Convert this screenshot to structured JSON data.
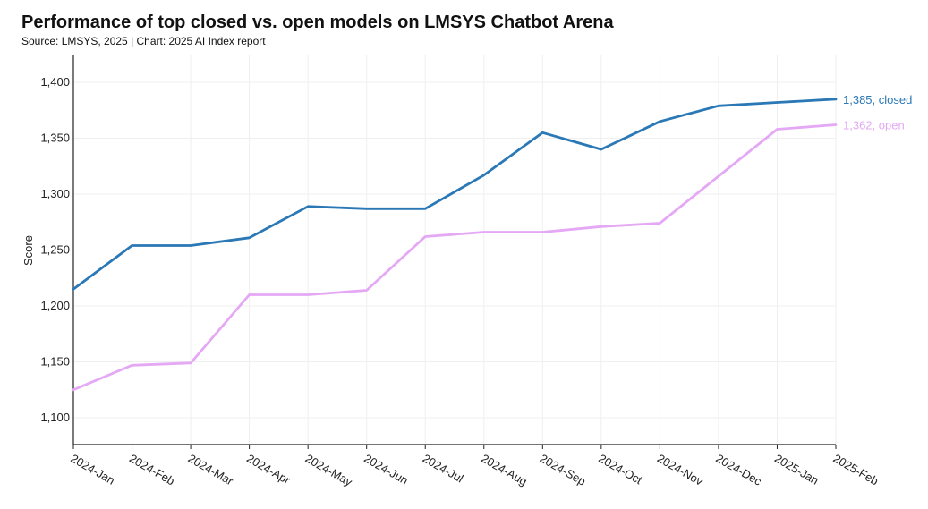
{
  "header": {
    "title": "Performance of top closed vs. open models on LMSYS Chatbot Arena",
    "source": "Source: LMSYS, 2025 | Chart: 2025 AI Index report"
  },
  "chart_data": {
    "type": "line",
    "title": "Performance of top closed vs. open models on LMSYS Chatbot Arena",
    "subtitle": "Source: LMSYS, 2025 | Chart: 2025 AI Index report",
    "xlabel": "",
    "ylabel": "Score",
    "ylim": [
      1075,
      1425
    ],
    "yticks": [
      1100,
      1150,
      1200,
      1250,
      1300,
      1350,
      1400
    ],
    "ytick_labels": [
      "1,100",
      "1,150",
      "1,200",
      "1,250",
      "1,300",
      "1,350",
      "1,400"
    ],
    "grid": true,
    "categories": [
      "2024-Jan",
      "2024-Feb",
      "2024-Mar",
      "2024-Apr",
      "2024-May",
      "2024-Jun",
      "2024-Jul",
      "2024-Aug",
      "2024-Sep",
      "2024-Oct",
      "2024-Nov",
      "2024-Dec",
      "2025-Jan",
      "2025-Feb"
    ],
    "series": [
      {
        "key": "closed",
        "color": "#2a78b5",
        "end_label": "1,385, closed",
        "values": [
          1215,
          1254,
          1254,
          1261,
          1289,
          1287,
          1287,
          1317,
          1355,
          1340,
          1365,
          1379,
          1382,
          1385
        ]
      },
      {
        "key": "open",
        "color": "#e4a8f5",
        "end_label": "1,362, open",
        "values": [
          1125,
          1147,
          1149,
          1210,
          1210,
          1214,
          1262,
          1266,
          1266,
          1271,
          1274,
          1316,
          1358,
          1362
        ]
      }
    ]
  }
}
